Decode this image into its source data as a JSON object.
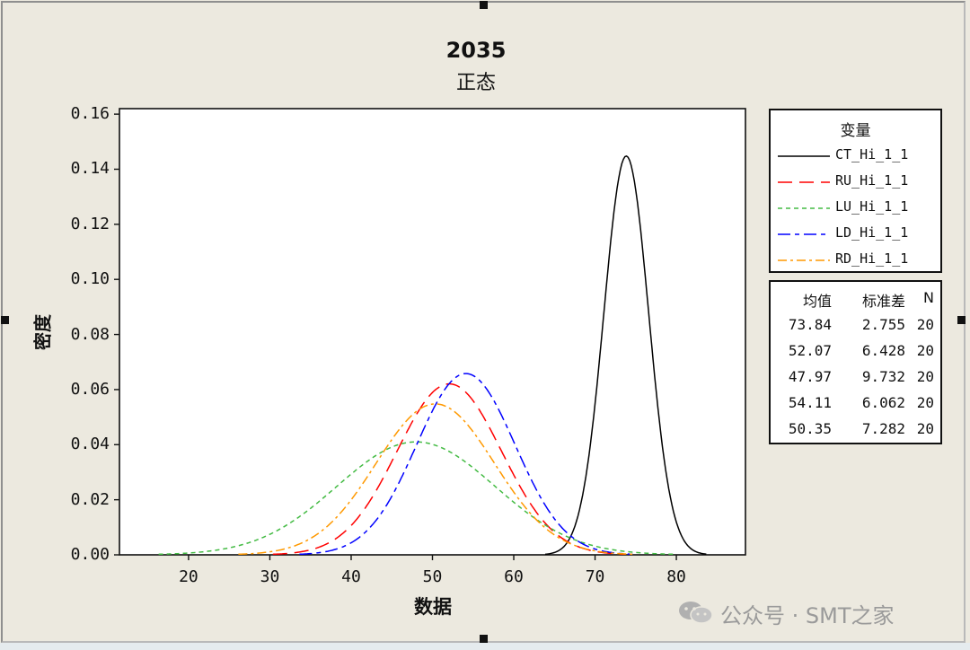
{
  "chart_data": {
    "type": "line",
    "title": "2035",
    "subtitle": "正态",
    "xlabel": "数据",
    "ylabel": "密度",
    "xlim": [
      11.5,
      88.5
    ],
    "ylim": [
      0,
      0.162
    ],
    "x_ticks": [
      20,
      30,
      40,
      50,
      60,
      70,
      80
    ],
    "x_tick_labels": [
      "20",
      "30",
      "40",
      "50",
      "60",
      "70",
      "80"
    ],
    "y_ticks": [
      0,
      0.02,
      0.04,
      0.06,
      0.08,
      0.1,
      0.12,
      0.14,
      0.16
    ],
    "y_tick_labels": [
      "0.00",
      "0.02",
      "0.04",
      "0.06",
      "0.08",
      "0.10",
      "0.12",
      "0.14",
      "0.16"
    ],
    "grid": false,
    "legend_title": "变量",
    "legend_position": "right",
    "series": [
      {
        "name": "CT_Hi_1_1",
        "distribution": "normal",
        "mean": 73.84,
        "sd": 2.755,
        "n": 20,
        "color": "#000000",
        "dash": "solid"
      },
      {
        "name": "RU_Hi_1_1",
        "distribution": "normal",
        "mean": 52.07,
        "sd": 6.428,
        "n": 20,
        "color": "#ff0000",
        "dash": "long-dash"
      },
      {
        "name": "LU_Hi_1_1",
        "distribution": "normal",
        "mean": 47.97,
        "sd": 9.732,
        "n": 20,
        "color": "#44bb44",
        "dash": "short-dash"
      },
      {
        "name": "LD_Hi_1_1",
        "distribution": "normal",
        "mean": 54.11,
        "sd": 6.062,
        "n": 20,
        "color": "#0000ff",
        "dash": "long-short-dash"
      },
      {
        "name": "RD_Hi_1_1",
        "distribution": "normal",
        "mean": 50.35,
        "sd": 7.282,
        "n": 20,
        "color": "#ff9900",
        "dash": "dash-dot"
      }
    ],
    "stats_table": {
      "headers": [
        "均值",
        "标准差",
        "N"
      ],
      "rows": [
        [
          "73.84",
          "2.755",
          "20"
        ],
        [
          "52.07",
          "6.428",
          "20"
        ],
        [
          "47.97",
          "9.732",
          "20"
        ],
        [
          "54.11",
          "6.062",
          "20"
        ],
        [
          "50.35",
          "7.282",
          "20"
        ]
      ]
    }
  },
  "watermark": "公众号 · SMT之家"
}
